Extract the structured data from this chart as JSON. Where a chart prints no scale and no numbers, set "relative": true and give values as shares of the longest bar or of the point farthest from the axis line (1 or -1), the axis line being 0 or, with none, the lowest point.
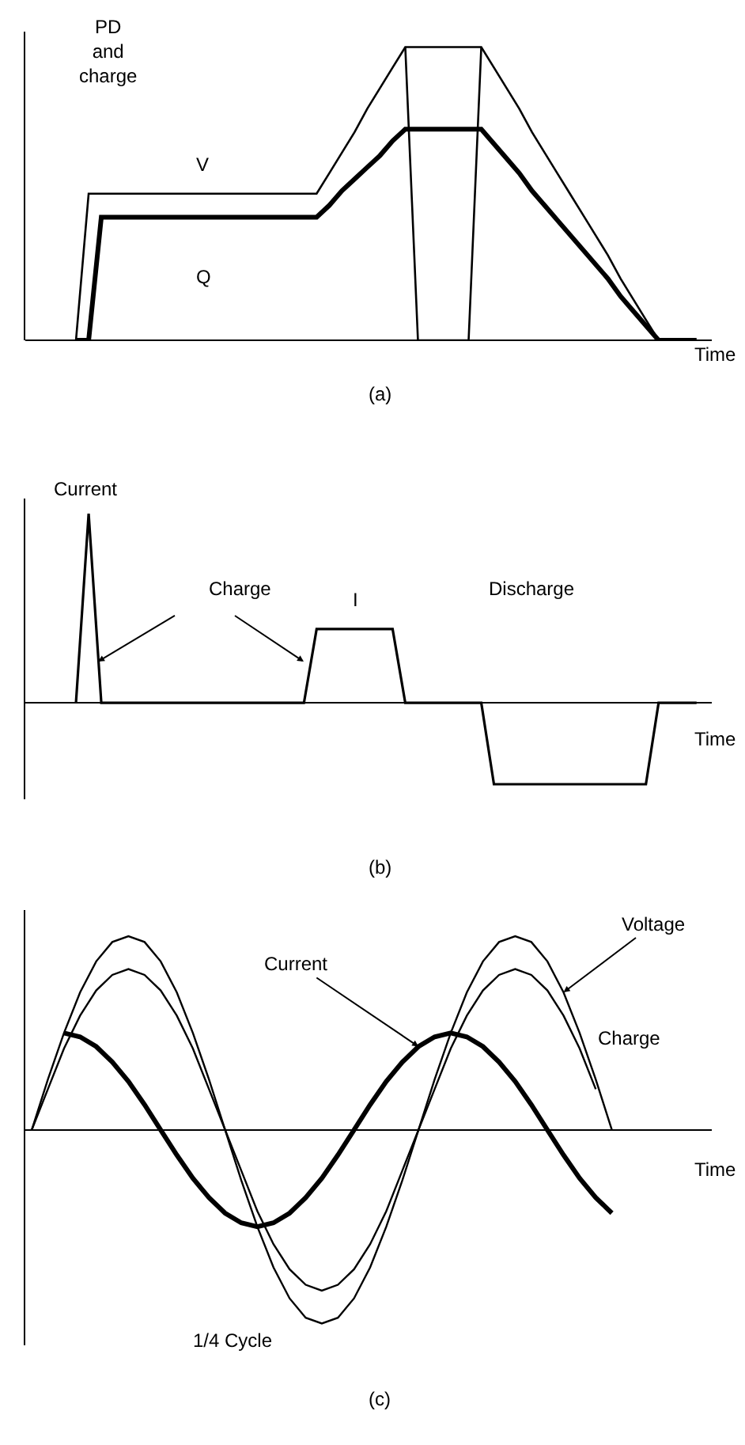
{
  "chart_data": [
    {
      "type": "line",
      "relative": true,
      "ylabel": "PD and charge",
      "xlabel": "Time",
      "tick_labels": false,
      "annotations": [
        "(a)"
      ],
      "categories": [
        null,
        null,
        null,
        null,
        null,
        null,
        null,
        null,
        null,
        null,
        null,
        null,
        null,
        null,
        null,
        null,
        null,
        null,
        null,
        null,
        null,
        null,
        null,
        null,
        null,
        null,
        null,
        null,
        null,
        null,
        null,
        null,
        null,
        null,
        null,
        null,
        null,
        null,
        null,
        null,
        null,
        null,
        null,
        null,
        null,
        null,
        null,
        null,
        null,
        null
      ],
      "series": [
        {
          "name": "V",
          "color": "#000000",
          "values": [
            0,
            0.5,
            0.5,
            0.5,
            0.5,
            0.5,
            0.5,
            0.5,
            0.5,
            0.5,
            0.5,
            0.5,
            0.5,
            0.5,
            0.5,
            0.5,
            0.5,
            0.5,
            0.5,
            0.5,
            0.57,
            0.64,
            0.71,
            0.79,
            0.86,
            0.93,
            1,
            1,
            1,
            1,
            1,
            1,
            1,
            0.93,
            0.86,
            0.79,
            0.71,
            0.64,
            0.57,
            0.5,
            0.43,
            0.36,
            0.29,
            0.21,
            0.14,
            0.07,
            0,
            0,
            0,
            0
          ]
        },
        {
          "name": "Q",
          "color": "#000000",
          "values": [
            0,
            0,
            0.42,
            0.42,
            0.42,
            0.42,
            0.42,
            0.42,
            0.42,
            0.42,
            0.42,
            0.42,
            0.42,
            0.42,
            0.42,
            0.42,
            0.42,
            0.42,
            0.42,
            0.42,
            0.46,
            0.51,
            0.55,
            0.59,
            0.63,
            0.68,
            0.72,
            0.72,
            0.72,
            0.72,
            0.72,
            0.72,
            0.72,
            0.67,
            0.62,
            0.57,
            0.51,
            0.46,
            0.41,
            0.36,
            0.31,
            0.26,
            0.21,
            0.15,
            0.1,
            0.05,
            0,
            0,
            0,
            0
          ]
        },
        {
          "color": "#000000",
          "values": [
            null,
            null,
            null,
            null,
            null,
            null,
            null,
            null,
            null,
            null,
            null,
            null,
            null,
            null,
            null,
            null,
            null,
            null,
            null,
            null,
            null,
            null,
            null,
            null,
            null,
            null,
            1,
            0,
            0,
            0,
            0,
            0,
            1,
            null,
            null,
            null,
            null,
            null,
            null,
            null,
            null,
            null,
            null,
            null,
            null,
            null,
            null,
            null,
            null,
            null
          ]
        }
      ]
    },
    {
      "type": "line",
      "relative": true,
      "ylabel": "Current",
      "xlabel": "Time",
      "tick_labels": false,
      "annotations": [
        "Charge",
        "Discharge",
        "(b)"
      ],
      "categories": [
        null,
        null,
        null,
        null,
        null,
        null,
        null,
        null,
        null,
        null,
        null,
        null,
        null,
        null,
        null,
        null,
        null,
        null,
        null,
        null,
        null,
        null,
        null,
        null,
        null,
        null,
        null,
        null,
        null,
        null,
        null,
        null,
        null,
        null,
        null,
        null,
        null,
        null,
        null,
        null,
        null,
        null,
        null,
        null,
        null,
        null,
        null,
        null,
        null,
        null
      ],
      "series": [
        {
          "name": "I",
          "color": "#000000",
          "values": [
            0,
            1,
            0,
            0,
            0,
            0,
            0,
            0,
            0,
            0,
            0,
            0,
            0,
            0,
            0,
            0,
            0,
            0,
            0,
            0.39,
            0.39,
            0.39,
            0.39,
            0.39,
            0.39,
            0.39,
            0,
            0,
            0,
            0,
            0,
            0,
            0,
            -0.43,
            -0.43,
            -0.43,
            -0.43,
            -0.43,
            -0.43,
            -0.43,
            -0.43,
            -0.43,
            -0.43,
            -0.43,
            -0.43,
            -0.43,
            0,
            0,
            0,
            0
          ]
        }
      ]
    },
    {
      "type": "line",
      "relative": true,
      "xlabel": "Time",
      "tick_labels": false,
      "annotations": [
        "1/4 Cycle",
        "(c)"
      ],
      "categories": [
        null,
        null,
        null,
        null,
        null,
        null,
        null,
        null,
        null,
        null,
        null,
        null,
        null,
        null,
        null,
        null,
        null,
        null,
        null,
        null,
        null,
        null,
        null,
        null,
        null,
        null,
        null,
        null,
        null,
        null,
        null,
        null,
        null,
        null,
        null,
        null,
        null,
        null,
        null,
        null,
        null,
        null,
        null
      ],
      "series": [
        {
          "name": "Voltage",
          "color": "#000000",
          "values": [
            0,
            0.26,
            0.5,
            0.71,
            0.87,
            0.97,
            1,
            0.97,
            0.87,
            0.71,
            0.5,
            0.26,
            0,
            -0.26,
            -0.5,
            -0.71,
            -0.87,
            -0.97,
            -1,
            -0.97,
            -0.87,
            -0.71,
            -0.5,
            -0.26,
            0,
            0.26,
            0.5,
            0.71,
            0.87,
            0.97,
            1,
            0.97,
            0.87,
            0.71,
            0.5,
            0.26,
            0,
            null,
            null,
            null,
            null,
            null,
            null
          ]
        },
        {
          "name": "Charge",
          "color": "#000000",
          "values": [
            0,
            0.21,
            0.42,
            0.59,
            0.72,
            0.8,
            0.83,
            0.8,
            0.72,
            0.59,
            0.42,
            0.21,
            0,
            -0.21,
            -0.42,
            -0.59,
            -0.72,
            -0.8,
            -0.83,
            -0.8,
            -0.72,
            -0.59,
            -0.42,
            -0.21,
            0,
            0.21,
            0.42,
            0.59,
            0.72,
            0.8,
            0.83,
            0.8,
            0.72,
            0.59,
            0.42,
            0.21,
            null,
            null,
            null,
            null,
            null,
            null,
            null
          ]
        },
        {
          "name": "Current",
          "color": "#000000",
          "values": [
            null,
            null,
            0.5,
            0.48,
            0.43,
            0.35,
            0.25,
            0.13,
            0,
            -0.13,
            -0.25,
            -0.35,
            -0.43,
            -0.48,
            -0.5,
            -0.48,
            -0.43,
            -0.35,
            -0.25,
            -0.13,
            0,
            0.13,
            0.25,
            0.35,
            0.43,
            0.48,
            0.5,
            0.48,
            0.43,
            0.35,
            0.25,
            0.13,
            0,
            -0.13,
            -0.25,
            -0.35,
            -0.43,
            null,
            null,
            null,
            null,
            null,
            null
          ]
        }
      ]
    }
  ]
}
